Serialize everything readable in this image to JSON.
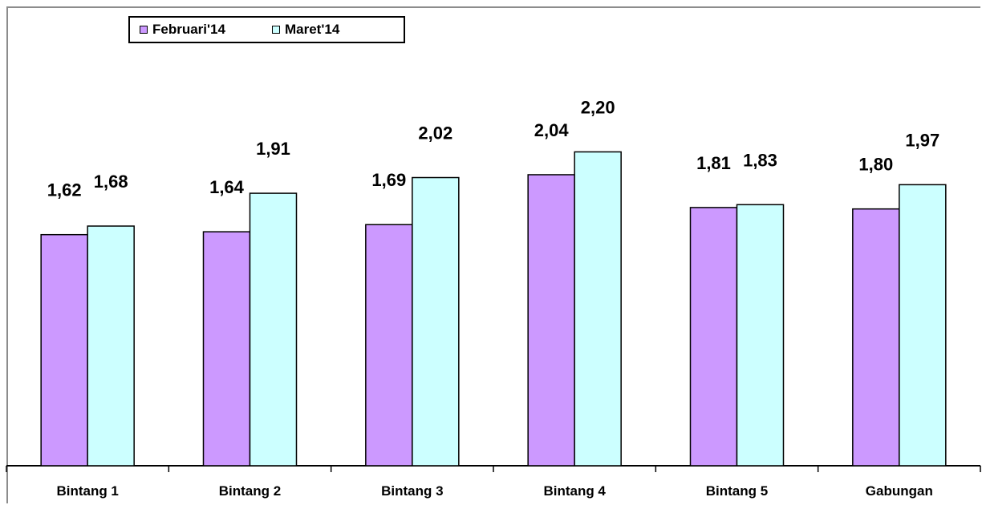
{
  "chart_data": {
    "type": "bar",
    "categories": [
      "Bintang 1",
      "Bintang 2",
      "Bintang 3",
      "Bintang 4",
      "Bintang 5",
      "Gabungan"
    ],
    "series": [
      {
        "name": "Februari'14",
        "values": [
          1.62,
          1.64,
          1.69,
          2.04,
          1.81,
          1.8
        ],
        "labels": [
          "1,62",
          "1,64",
          "1,69",
          "2,04",
          "1,81",
          "1,80"
        ],
        "color": "#cc99ff"
      },
      {
        "name": "Maret'14",
        "values": [
          1.68,
          1.91,
          2.02,
          2.2,
          1.83,
          1.97
        ],
        "labels": [
          "1,68",
          "1,91",
          "2,02",
          "2,20",
          "1,83",
          "1,97"
        ],
        "color": "#ccffff"
      }
    ],
    "ylim": [
      0,
      3.04
    ],
    "grid": false,
    "legend_position": "top-left"
  }
}
